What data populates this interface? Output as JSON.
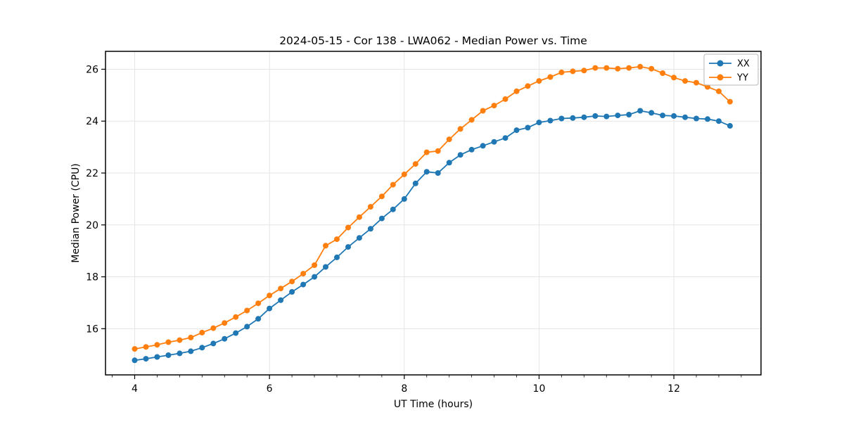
{
  "chart_data": {
    "type": "line",
    "title": "2024-05-15 - Cor 138 - LWA062 - Median Power vs. Time",
    "xlabel": "UT Time (hours)",
    "ylabel": "Median Power (CPU)",
    "xlim": [
      3.567,
      13.293
    ],
    "ylim": [
      14.22,
      26.69
    ],
    "xticks": [
      4,
      6,
      8,
      10,
      12
    ],
    "yticks": [
      16,
      18,
      20,
      22,
      24,
      26
    ],
    "x_minor_step": 0.3333,
    "grid": true,
    "grid_color": "#e5e5e5",
    "legend": {
      "position": "upper right",
      "entries": [
        "XX",
        "YY"
      ]
    },
    "x": [
      4.0,
      4.167,
      4.333,
      4.5,
      4.667,
      4.833,
      5.0,
      5.167,
      5.333,
      5.5,
      5.667,
      5.833,
      6.0,
      6.167,
      6.333,
      6.5,
      6.667,
      6.833,
      7.0,
      7.167,
      7.333,
      7.5,
      7.667,
      7.833,
      8.0,
      8.167,
      8.333,
      8.5,
      8.667,
      8.833,
      9.0,
      9.167,
      9.333,
      9.5,
      9.667,
      9.833,
      10.0,
      10.167,
      10.333,
      10.5,
      10.667,
      10.833,
      11.0,
      11.167,
      11.333,
      11.5,
      11.667,
      11.833,
      12.0,
      12.167,
      12.333,
      12.5,
      12.667,
      12.833
    ],
    "series": [
      {
        "name": "XX",
        "color": "#1f77b4",
        "values": [
          14.78,
          14.84,
          14.91,
          14.98,
          15.05,
          15.13,
          15.27,
          15.43,
          15.61,
          15.83,
          16.08,
          16.38,
          16.78,
          17.1,
          17.42,
          17.7,
          18.0,
          18.38,
          18.75,
          19.15,
          19.5,
          19.85,
          20.25,
          20.6,
          21.0,
          21.6,
          22.05,
          22.0,
          22.4,
          22.7,
          22.9,
          23.05,
          23.2,
          23.35,
          23.65,
          23.75,
          23.95,
          24.02,
          24.1,
          24.12,
          24.15,
          24.2,
          24.18,
          24.22,
          24.25,
          24.4,
          24.32,
          24.22,
          24.2,
          24.15,
          24.1,
          24.08,
          24.0,
          23.82
        ]
      },
      {
        "name": "YY",
        "color": "#ff7f0e",
        "values": [
          15.22,
          15.3,
          15.38,
          15.48,
          15.56,
          15.66,
          15.85,
          16.02,
          16.22,
          16.45,
          16.7,
          16.98,
          17.28,
          17.55,
          17.82,
          18.12,
          18.45,
          19.2,
          19.45,
          19.9,
          20.3,
          20.7,
          21.1,
          21.55,
          21.95,
          22.35,
          22.8,
          22.85,
          23.3,
          23.7,
          24.05,
          24.4,
          24.6,
          24.85,
          25.15,
          25.35,
          25.55,
          25.7,
          25.88,
          25.92,
          25.95,
          26.05,
          26.05,
          26.02,
          26.05,
          26.1,
          26.02,
          25.85,
          25.68,
          25.55,
          25.48,
          25.32,
          25.15,
          24.75
        ]
      }
    ]
  }
}
